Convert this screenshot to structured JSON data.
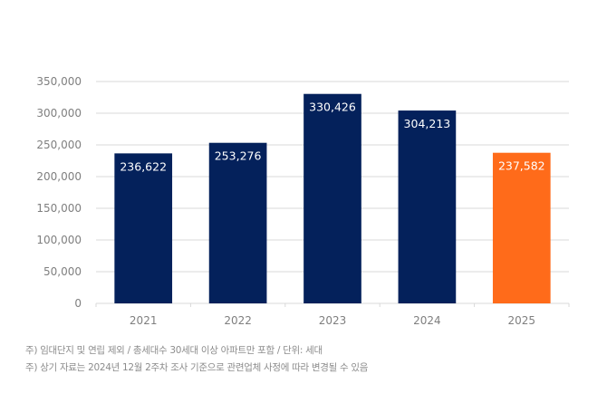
{
  "chart_data": {
    "type": "bar",
    "title": "",
    "xlabel": "",
    "ylabel": "",
    "categories": [
      "2021",
      "2022",
      "2023",
      "2024",
      "2025"
    ],
    "values": [
      236622,
      253276,
      330426,
      304213,
      237582
    ],
    "value_labels": [
      "236,622",
      "253,276",
      "330,426",
      "304,213",
      "237,582"
    ],
    "bar_colors": [
      "#04215b",
      "#04215b",
      "#04215b",
      "#04215b",
      "#ff6b1a"
    ],
    "ylim": [
      0,
      350000
    ],
    "yticks": [
      0,
      50000,
      100000,
      150000,
      200000,
      250000,
      300000,
      350000
    ],
    "ytick_labels": [
      "0",
      "50,000",
      "100,000",
      "150,000",
      "200,000",
      "250,000",
      "300,000",
      "350,000"
    ],
    "grid": true,
    "legend": "none"
  },
  "notes": [
    "주) 임대단지 및 연립 제외 / 총세대수 30세대 이상 아파트만 포함 / 단위: 세대",
    "주) 상기 자료는 2024년 12월 2주차 조사 기준으로 관련업체 사정에 따라 변경될 수 있음"
  ]
}
